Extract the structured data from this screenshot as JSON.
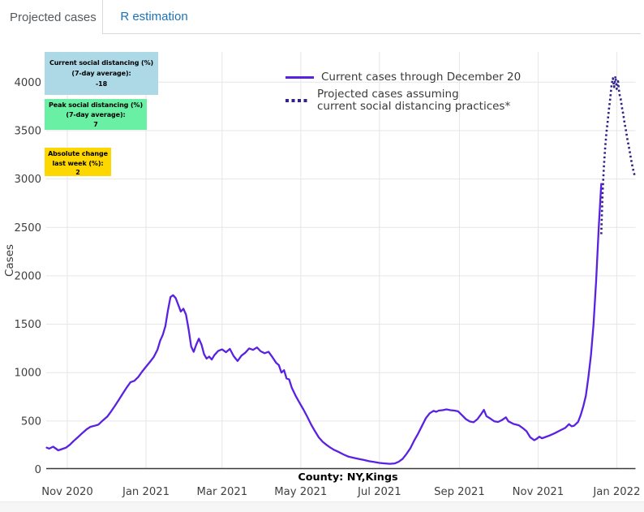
{
  "tabs": {
    "items": [
      {
        "label": "Projected cases",
        "active": true
      },
      {
        "label": "R estimation",
        "active": false
      }
    ]
  },
  "colors": {
    "tab_link_blue": "#1a73b7",
    "solid_line": "#5a22e0",
    "dotted_line": "#2f2388",
    "annotation_blue": "#ADD8E6",
    "annotation_green": "#69F0A4",
    "annotation_yellow": "#FFD700",
    "gridline": "#e6e6e6",
    "axis_line": "#3a3a3a"
  },
  "annotations": [
    {
      "id": "current-social-distancing",
      "bg": "#ADD8E6",
      "lines": [
        "Current social distancing (%)",
        "(7-day average):",
        "-18"
      ]
    },
    {
      "id": "peak-social-distancing",
      "bg": "#69F0A4",
      "lines": [
        "Peak social distancing (%)",
        "(7-day average):",
        "7"
      ]
    },
    {
      "id": "absolute-change-last-week",
      "bg": "#FFD700",
      "lines": [
        "Absolute change",
        "last week (%):",
        "2"
      ]
    }
  ],
  "chart_data": {
    "type": "line",
    "title": "",
    "xlabel": "County: NY,Kings",
    "ylabel": "Cases",
    "ylim": [
      0,
      4250
    ],
    "grid": true,
    "legend_position": "top-center-inside",
    "yticks": [
      {
        "value": 0,
        "label": "0"
      },
      {
        "value": 500,
        "label": "500"
      },
      {
        "value": 1000,
        "label": "1000"
      },
      {
        "value": 1500,
        "label": "1500"
      },
      {
        "value": 2000,
        "label": "2000"
      },
      {
        "value": 2500,
        "label": "2500"
      },
      {
        "value": 3000,
        "label": "3000"
      },
      {
        "value": 3500,
        "label": "3500"
      },
      {
        "value": 4000,
        "label": "4000"
      }
    ],
    "xticks": [
      {
        "date": "2020-11-01",
        "label": "Nov 2020"
      },
      {
        "date": "2021-01-01",
        "label": "Jan 2021"
      },
      {
        "date": "2021-03-01",
        "label": "Mar 2021"
      },
      {
        "date": "2021-05-01",
        "label": "May 2021"
      },
      {
        "date": "2021-07-01",
        "label": "Jul 2021"
      },
      {
        "date": "2021-09-01",
        "label": "Sep 2021"
      },
      {
        "date": "2021-11-01",
        "label": "Nov 2021"
      },
      {
        "date": "2022-01-01",
        "label": "Jan 2022"
      }
    ],
    "series": [
      {
        "name": "Current cases through December 20",
        "legend": [
          "Current cases through December 20"
        ],
        "style": "solid",
        "color": "#5a22e0",
        "points": [
          [
            "2020-10-16",
            225
          ],
          [
            "2020-10-18",
            215
          ],
          [
            "2020-10-21",
            235
          ],
          [
            "2020-10-25",
            197
          ],
          [
            "2020-10-28",
            210
          ],
          [
            "2020-10-31",
            225
          ],
          [
            "2020-11-03",
            255
          ],
          [
            "2020-11-06",
            295
          ],
          [
            "2020-11-09",
            330
          ],
          [
            "2020-11-13",
            380
          ],
          [
            "2020-11-16",
            415
          ],
          [
            "2020-11-19",
            440
          ],
          [
            "2020-11-22",
            450
          ],
          [
            "2020-11-25",
            462
          ],
          [
            "2020-11-28",
            500
          ],
          [
            "2020-12-02",
            546
          ],
          [
            "2020-12-05",
            600
          ],
          [
            "2020-12-08",
            658
          ],
          [
            "2020-12-11",
            720
          ],
          [
            "2020-12-14",
            784
          ],
          [
            "2020-12-17",
            845
          ],
          [
            "2020-12-20",
            900
          ],
          [
            "2020-12-23",
            915
          ],
          [
            "2020-12-26",
            955
          ],
          [
            "2020-12-29",
            1010
          ],
          [
            "2021-01-01",
            1060
          ],
          [
            "2021-01-04",
            1110
          ],
          [
            "2021-01-07",
            1160
          ],
          [
            "2021-01-10",
            1240
          ],
          [
            "2021-01-12",
            1330
          ],
          [
            "2021-01-14",
            1390
          ],
          [
            "2021-01-16",
            1480
          ],
          [
            "2021-01-18",
            1640
          ],
          [
            "2021-01-20",
            1780
          ],
          [
            "2021-01-22",
            1800
          ],
          [
            "2021-01-24",
            1770
          ],
          [
            "2021-01-26",
            1700
          ],
          [
            "2021-01-28",
            1630
          ],
          [
            "2021-01-30",
            1660
          ],
          [
            "2021-02-01",
            1600
          ],
          [
            "2021-02-03",
            1450
          ],
          [
            "2021-02-05",
            1270
          ],
          [
            "2021-02-07",
            1215
          ],
          [
            "2021-02-09",
            1290
          ],
          [
            "2021-02-11",
            1350
          ],
          [
            "2021-02-13",
            1290
          ],
          [
            "2021-02-15",
            1190
          ],
          [
            "2021-02-17",
            1145
          ],
          [
            "2021-02-19",
            1165
          ],
          [
            "2021-02-21",
            1135
          ],
          [
            "2021-02-23",
            1180
          ],
          [
            "2021-02-26",
            1225
          ],
          [
            "2021-03-01",
            1240
          ],
          [
            "2021-03-04",
            1210
          ],
          [
            "2021-03-07",
            1245
          ],
          [
            "2021-03-10",
            1170
          ],
          [
            "2021-03-13",
            1120
          ],
          [
            "2021-03-16",
            1175
          ],
          [
            "2021-03-19",
            1205
          ],
          [
            "2021-03-22",
            1250
          ],
          [
            "2021-03-25",
            1235
          ],
          [
            "2021-03-28",
            1260
          ],
          [
            "2021-03-31",
            1220
          ],
          [
            "2021-04-03",
            1200
          ],
          [
            "2021-04-06",
            1215
          ],
          [
            "2021-04-09",
            1160
          ],
          [
            "2021-04-12",
            1100
          ],
          [
            "2021-04-14",
            1077
          ],
          [
            "2021-04-16",
            1000
          ],
          [
            "2021-04-18",
            1025
          ],
          [
            "2021-04-20",
            940
          ],
          [
            "2021-04-22",
            930
          ],
          [
            "2021-04-24",
            845
          ],
          [
            "2021-04-27",
            760
          ],
          [
            "2021-04-30",
            690
          ],
          [
            "2021-05-03",
            620
          ],
          [
            "2021-05-06",
            545
          ],
          [
            "2021-05-09",
            465
          ],
          [
            "2021-05-12",
            395
          ],
          [
            "2021-05-15",
            330
          ],
          [
            "2021-05-18",
            285
          ],
          [
            "2021-05-21",
            253
          ],
          [
            "2021-05-24",
            225
          ],
          [
            "2021-05-27",
            200
          ],
          [
            "2021-05-30",
            183
          ],
          [
            "2021-06-03",
            155
          ],
          [
            "2021-06-07",
            132
          ],
          [
            "2021-06-11",
            120
          ],
          [
            "2021-06-15",
            108
          ],
          [
            "2021-06-19",
            97
          ],
          [
            "2021-06-23",
            85
          ],
          [
            "2021-06-27",
            76
          ],
          [
            "2021-07-01",
            67
          ],
          [
            "2021-07-05",
            62
          ],
          [
            "2021-07-09",
            58
          ],
          [
            "2021-07-13",
            62
          ],
          [
            "2021-07-16",
            80
          ],
          [
            "2021-07-19",
            110
          ],
          [
            "2021-07-22",
            160
          ],
          [
            "2021-07-25",
            220
          ],
          [
            "2021-07-28",
            300
          ],
          [
            "2021-07-31",
            370
          ],
          [
            "2021-08-03",
            450
          ],
          [
            "2021-08-06",
            530
          ],
          [
            "2021-08-09",
            580
          ],
          [
            "2021-08-12",
            605
          ],
          [
            "2021-08-14",
            595
          ],
          [
            "2021-08-16",
            608
          ],
          [
            "2021-08-19",
            612
          ],
          [
            "2021-08-22",
            620
          ],
          [
            "2021-08-25",
            612
          ],
          [
            "2021-08-28",
            608
          ],
          [
            "2021-08-31",
            600
          ],
          [
            "2021-09-03",
            560
          ],
          [
            "2021-09-06",
            520
          ],
          [
            "2021-09-09",
            495
          ],
          [
            "2021-09-12",
            487
          ],
          [
            "2021-09-15",
            520
          ],
          [
            "2021-09-18",
            575
          ],
          [
            "2021-09-20",
            615
          ],
          [
            "2021-09-22",
            550
          ],
          [
            "2021-09-25",
            525
          ],
          [
            "2021-09-28",
            497
          ],
          [
            "2021-10-01",
            490
          ],
          [
            "2021-10-04",
            510
          ],
          [
            "2021-10-07",
            538
          ],
          [
            "2021-10-09",
            497
          ],
          [
            "2021-10-13",
            469
          ],
          [
            "2021-10-17",
            456
          ],
          [
            "2021-10-20",
            428
          ],
          [
            "2021-10-23",
            395
          ],
          [
            "2021-10-26",
            330
          ],
          [
            "2021-10-29",
            302
          ],
          [
            "2021-10-31",
            317
          ],
          [
            "2021-11-02",
            338
          ],
          [
            "2021-11-04",
            322
          ],
          [
            "2021-11-06",
            331
          ],
          [
            "2021-11-10",
            350
          ],
          [
            "2021-11-14",
            375
          ],
          [
            "2021-11-18",
            402
          ],
          [
            "2021-11-22",
            428
          ],
          [
            "2021-11-25",
            468
          ],
          [
            "2021-11-27",
            445
          ],
          [
            "2021-11-29",
            452
          ],
          [
            "2021-12-02",
            490
          ],
          [
            "2021-12-04",
            560
          ],
          [
            "2021-12-06",
            650
          ],
          [
            "2021-12-08",
            760
          ],
          [
            "2021-12-10",
            950
          ],
          [
            "2021-12-12",
            1180
          ],
          [
            "2021-12-14",
            1500
          ],
          [
            "2021-12-16",
            1950
          ],
          [
            "2021-12-18",
            2500
          ],
          [
            "2021-12-20",
            2950
          ]
        ]
      },
      {
        "name": "Projected cases assuming current social distancing practices*",
        "legend": [
          "Projected cases assuming",
          "current social distancing practices*"
        ],
        "style": "dotted",
        "color": "#2f2388",
        "points": [
          [
            "2021-12-20",
            2430
          ],
          [
            "2021-12-21",
            2850
          ],
          [
            "2021-12-22",
            3120
          ],
          [
            "2021-12-23",
            3320
          ],
          [
            "2021-12-24",
            3480
          ],
          [
            "2021-12-25",
            3600
          ],
          [
            "2021-12-26",
            3730
          ],
          [
            "2021-12-27",
            3840
          ],
          [
            "2021-12-28",
            3980
          ],
          [
            "2021-12-29",
            4040
          ],
          [
            "2021-12-30",
            3950
          ],
          [
            "2021-12-31",
            4060
          ],
          [
            "2022-01-01",
            3930
          ],
          [
            "2022-01-02",
            4010
          ],
          [
            "2022-01-03",
            3880
          ],
          [
            "2022-01-04",
            3830
          ],
          [
            "2022-01-05",
            3740
          ],
          [
            "2022-01-06",
            3670
          ],
          [
            "2022-01-07",
            3580
          ],
          [
            "2022-01-08",
            3510
          ],
          [
            "2022-01-09",
            3430
          ],
          [
            "2022-01-10",
            3360
          ],
          [
            "2022-01-11",
            3290
          ],
          [
            "2022-01-12",
            3210
          ],
          [
            "2022-01-13",
            3140
          ],
          [
            "2022-01-14",
            3080
          ],
          [
            "2022-01-15",
            3030
          ]
        ]
      }
    ]
  }
}
